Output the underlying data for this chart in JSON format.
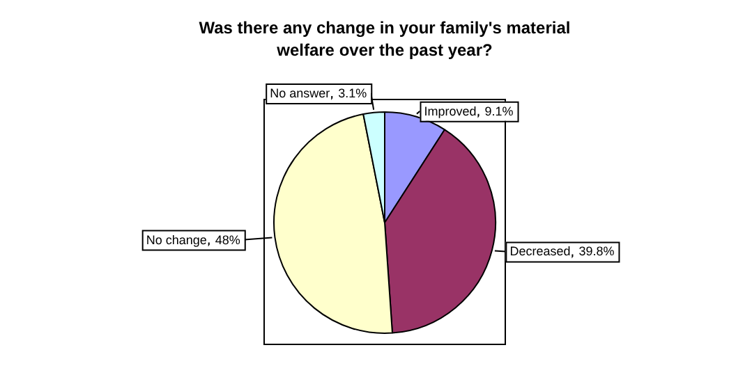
{
  "chart_data": {
    "type": "pie",
    "title": "Was there any change in your family's material welfare over the past year?",
    "categories": [
      "Improved",
      "Decreased",
      "No change",
      "No answer"
    ],
    "values": [
      9.1,
      39.8,
      48,
      3.1
    ],
    "value_labels": [
      "9.1%",
      "39.8%",
      "48%",
      "3.1%"
    ],
    "colors": [
      "#9999ff",
      "#993366",
      "#ffffcc",
      "#ccffff"
    ],
    "legend": false
  }
}
